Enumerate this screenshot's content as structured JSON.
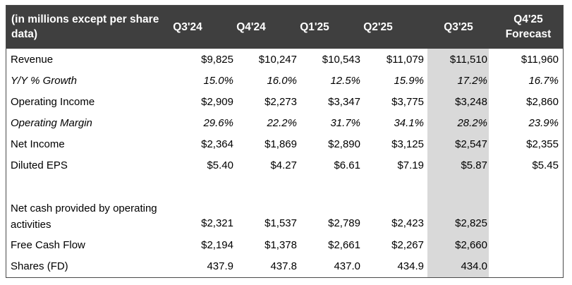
{
  "header": {
    "label_line1": "(in millions except per share",
    "label_line2": "data)",
    "columns": [
      "Q3'24",
      "Q4'24",
      "Q1'25",
      "Q2'25",
      "Q3'25"
    ],
    "forecast_line1": "Q4'25",
    "forecast_line2": "Forecast"
  },
  "rows": [
    {
      "label": "Revenue",
      "values": [
        "$9,825",
        "$10,247",
        "$10,543",
        "$11,079",
        "$11,510",
        "$11,960"
      ]
    },
    {
      "label": "Y/Y % Growth",
      "values": [
        "15.0%",
        "16.0%",
        "12.5%",
        "15.9%",
        "17.2%",
        "16.7%"
      ]
    },
    {
      "label": "Operating Income",
      "values": [
        "$2,909",
        "$2,273",
        "$3,347",
        "$3,775",
        "$3,248",
        "$2,860"
      ]
    },
    {
      "label": "Operating Margin",
      "values": [
        "29.6%",
        "22.2%",
        "31.7%",
        "34.1%",
        "28.2%",
        "23.9%"
      ]
    },
    {
      "label": "Net Income",
      "values": [
        "$2,364",
        "$1,869",
        "$2,890",
        "$3,125",
        "$2,547",
        "$2,355"
      ]
    },
    {
      "label": "Diluted EPS",
      "values": [
        "$5.40",
        "$4.27",
        "$6.61",
        "$7.19",
        "$5.87",
        "$5.45"
      ]
    },
    {
      "label_line1": "Net cash provided by operating",
      "label_line2": "activities",
      "values": [
        "$2,321",
        "$1,537",
        "$2,789",
        "$2,423",
        "$2,825"
      ]
    },
    {
      "label": "Free Cash Flow",
      "values": [
        "$2,194",
        "$1,378",
        "$2,661",
        "$2,267",
        "$2,660"
      ]
    },
    {
      "label": "Shares (FD)",
      "values": [
        "437.9",
        "437.8",
        "437.0",
        "434.9",
        "434.0"
      ]
    }
  ]
}
